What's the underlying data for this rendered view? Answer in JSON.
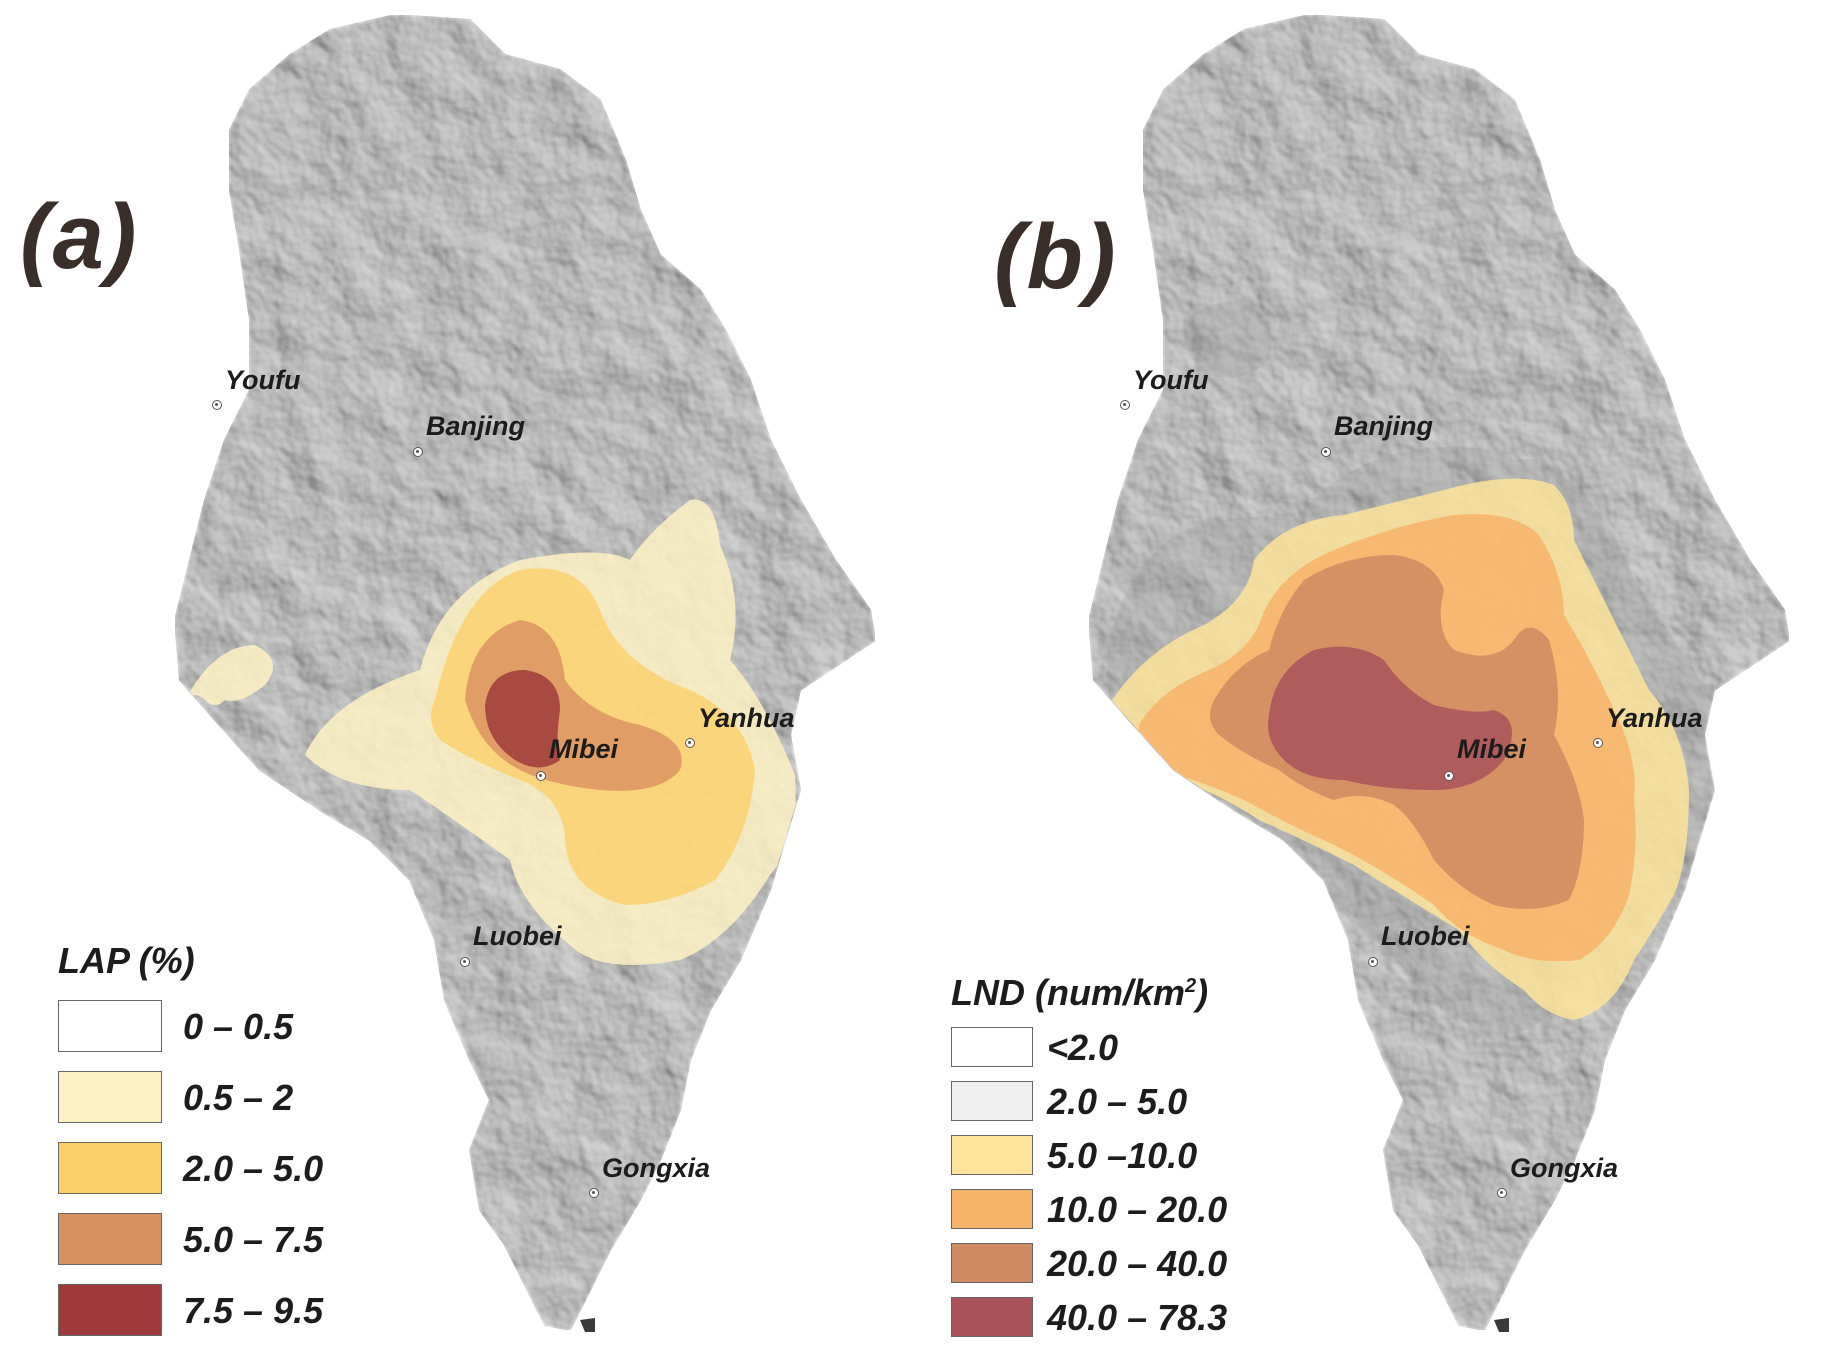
{
  "panels": [
    {
      "label": "(a)",
      "towns": {
        "youfu": "Youfu",
        "banjing": "Banjing",
        "yanhua": "Yanhua",
        "mibei": "Mibei",
        "luobei": "Luobei",
        "gongxia": "Gongxia"
      },
      "legend": {
        "title": "LAP (%)",
        "items": [
          {
            "label": "0 – 0.5",
            "color": "#ffffff"
          },
          {
            "label": "0.5 – 2",
            "color": "#fdf1c3"
          },
          {
            "label": "2.0 – 5.0",
            "color": "#fbd06a"
          },
          {
            "label": "5.0 – 7.5",
            "color": "#d99060"
          },
          {
            "label": "7.5 – 9.5",
            "color": "#9e3a3c"
          }
        ]
      }
    },
    {
      "label": "(b)",
      "towns": {
        "youfu": "Youfu",
        "banjing": "Banjing",
        "yanhua": "Yanhua",
        "mibei": "Mibei",
        "luobei": "Luobei",
        "gongxia": "Gongxia"
      },
      "legend": {
        "title_main": "LND (num/km",
        "title_sup": "2",
        "title_end": ")",
        "items": [
          {
            "label": "<2.0",
            "color": "#ffffff"
          },
          {
            "label": "2.0 – 5.0",
            "color": "#f0f0f0"
          },
          {
            "label": "5.0 –10.0",
            "color": "#fde49a"
          },
          {
            "label": "10.0 – 20.0",
            "color": "#f8b36a"
          },
          {
            "label": "20.0 – 40.0",
            "color": "#cf8a62"
          },
          {
            "label": "40.0 – 78.3",
            "color": "#a9525a"
          }
        ]
      }
    }
  ]
}
